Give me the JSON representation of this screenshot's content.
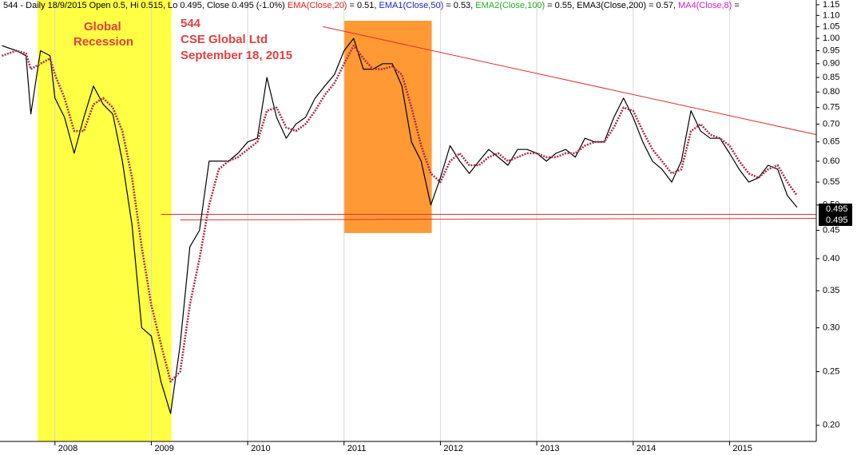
{
  "chart_data": {
    "type": "line",
    "header": [
      {
        "text": "544 - Daily 18/9/2015 Open 0.5, Hi 0.515, Lo 0.495, Close 0.495 (-1.0%) ",
        "color": "#000000"
      },
      {
        "text": "EMA(Close,20)",
        "color": "#e02020"
      },
      {
        "text": " = 0.51, ",
        "color": "#000000"
      },
      {
        "text": "EMA1(Close,50)",
        "color": "#2020d0"
      },
      {
        "text": " = 0.53, ",
        "color": "#000000"
      },
      {
        "text": "EMA2(Close,100)",
        "color": "#20b020"
      },
      {
        "text": " = 0.55, EMA3(Close,200) = 0.57, ",
        "color": "#000000"
      },
      {
        "text": "MA4(Close,8)",
        "color": "#d020d0"
      },
      {
        "text": " =",
        "color": "#000000"
      }
    ],
    "annotations": [
      "Global",
      "Recession",
      "544",
      "CSE Global Ltd",
      "September 18, 2015"
    ],
    "price_tags": [
      "0.495",
      "0.495"
    ],
    "log_y": true,
    "grid": true,
    "xlim": [
      2007.43,
      2015.9
    ],
    "xticks": [
      2008,
      2009,
      2010,
      2011,
      2012,
      2013,
      2014,
      2015
    ],
    "ylim": [
      0.187,
      1.173
    ],
    "yticks": [
      {
        "value": 0.2,
        "label": "0.20"
      },
      0.25,
      {
        "value": 0.3,
        "label": "0.30"
      },
      0.35,
      {
        "value": 0.4,
        "label": "0.40"
      },
      0.45,
      {
        "value": 0.5,
        "label": "0.50"
      },
      0.55,
      {
        "value": 0.6,
        "label": "0.60"
      },
      0.65,
      {
        "value": 0.7,
        "label": "0.70"
      },
      0.75,
      {
        "value": 0.8,
        "label": "0.80"
      },
      0.85,
      {
        "value": 0.9,
        "label": "0.90"
      },
      0.95,
      {
        "value": 1.0,
        "label": "1.00"
      },
      1.05,
      {
        "value": 1.1,
        "label": "1.10"
      },
      1.15
    ],
    "shaded_regions": [
      {
        "x": [
          2007.82,
          2009.21
        ],
        "color": "#ffff44"
      },
      {
        "x": [
          2011.0,
          2011.91
        ],
        "y": [
          0.445,
          1.076
        ],
        "color": "#ff9933"
      }
    ],
    "trend_lines": [
      {
        "x": [
          2010.78,
          2015.9
        ],
        "y": [
          1.05,
          0.67
        ],
        "color": "#e03030"
      },
      {
        "x": [
          2009.1,
          2015.9
        ],
        "y": [
          0.481,
          0.481
        ],
        "color": "#e03030"
      },
      {
        "x": [
          2009.3,
          2015.9
        ],
        "y": [
          0.47,
          0.473
        ],
        "color": "#e03030"
      }
    ],
    "x": [
      2007.45,
      2007.6,
      2007.7,
      2007.75,
      2007.85,
      2007.95,
      2008.0,
      2008.1,
      2008.2,
      2008.3,
      2008.4,
      2008.5,
      2008.6,
      2008.7,
      2008.8,
      2008.9,
      2009.0,
      2009.1,
      2009.2,
      2009.3,
      2009.4,
      2009.5,
      2009.6,
      2009.7,
      2009.8,
      2009.9,
      2010.0,
      2010.1,
      2010.2,
      2010.3,
      2010.4,
      2010.5,
      2010.6,
      2010.7,
      2010.8,
      2010.9,
      2011.0,
      2011.1,
      2011.2,
      2011.3,
      2011.4,
      2011.5,
      2011.6,
      2011.7,
      2011.8,
      2011.9,
      2012.0,
      2012.1,
      2012.2,
      2012.3,
      2012.4,
      2012.5,
      2012.6,
      2012.7,
      2012.8,
      2012.9,
      2013.0,
      2013.1,
      2013.2,
      2013.3,
      2013.4,
      2013.5,
      2013.6,
      2013.7,
      2013.8,
      2013.9,
      2014.0,
      2014.1,
      2014.2,
      2014.3,
      2014.4,
      2014.5,
      2014.6,
      2014.7,
      2014.8,
      2014.9,
      2015.0,
      2015.1,
      2015.2,
      2015.3,
      2015.4,
      2015.5,
      2015.6,
      2015.7
    ],
    "series": [
      {
        "name": "Close",
        "color": "#000000",
        "values": [
          0.97,
          0.95,
          0.93,
          0.73,
          0.95,
          0.93,
          0.78,
          0.72,
          0.62,
          0.72,
          0.82,
          0.76,
          0.73,
          0.6,
          0.46,
          0.3,
          0.29,
          0.24,
          0.21,
          0.28,
          0.42,
          0.45,
          0.6,
          0.6,
          0.6,
          0.62,
          0.65,
          0.66,
          0.85,
          0.72,
          0.66,
          0.7,
          0.72,
          0.78,
          0.82,
          0.86,
          0.95,
          1.0,
          0.88,
          0.88,
          0.9,
          0.9,
          0.82,
          0.65,
          0.6,
          0.5,
          0.56,
          0.64,
          0.6,
          0.57,
          0.6,
          0.63,
          0.61,
          0.59,
          0.63,
          0.63,
          0.62,
          0.6,
          0.62,
          0.63,
          0.61,
          0.66,
          0.65,
          0.65,
          0.72,
          0.78,
          0.72,
          0.65,
          0.6,
          0.58,
          0.55,
          0.6,
          0.74,
          0.68,
          0.66,
          0.66,
          0.62,
          0.58,
          0.55,
          0.56,
          0.59,
          0.58,
          0.52,
          0.495
        ]
      },
      {
        "name": "MA",
        "color": "#a8304a",
        "values": [
          0.93,
          0.95,
          0.94,
          0.88,
          0.9,
          0.92,
          0.86,
          0.78,
          0.68,
          0.68,
          0.76,
          0.78,
          0.75,
          0.68,
          0.56,
          0.42,
          0.33,
          0.28,
          0.24,
          0.25,
          0.33,
          0.4,
          0.5,
          0.58,
          0.6,
          0.61,
          0.63,
          0.65,
          0.74,
          0.75,
          0.69,
          0.68,
          0.7,
          0.74,
          0.79,
          0.83,
          0.9,
          0.97,
          0.92,
          0.88,
          0.88,
          0.89,
          0.86,
          0.75,
          0.64,
          0.57,
          0.55,
          0.6,
          0.62,
          0.59,
          0.59,
          0.61,
          0.62,
          0.6,
          0.61,
          0.62,
          0.62,
          0.61,
          0.61,
          0.62,
          0.62,
          0.64,
          0.65,
          0.65,
          0.69,
          0.75,
          0.74,
          0.68,
          0.63,
          0.6,
          0.57,
          0.58,
          0.68,
          0.7,
          0.67,
          0.66,
          0.64,
          0.6,
          0.57,
          0.56,
          0.58,
          0.59,
          0.55,
          0.52
        ]
      }
    ]
  }
}
